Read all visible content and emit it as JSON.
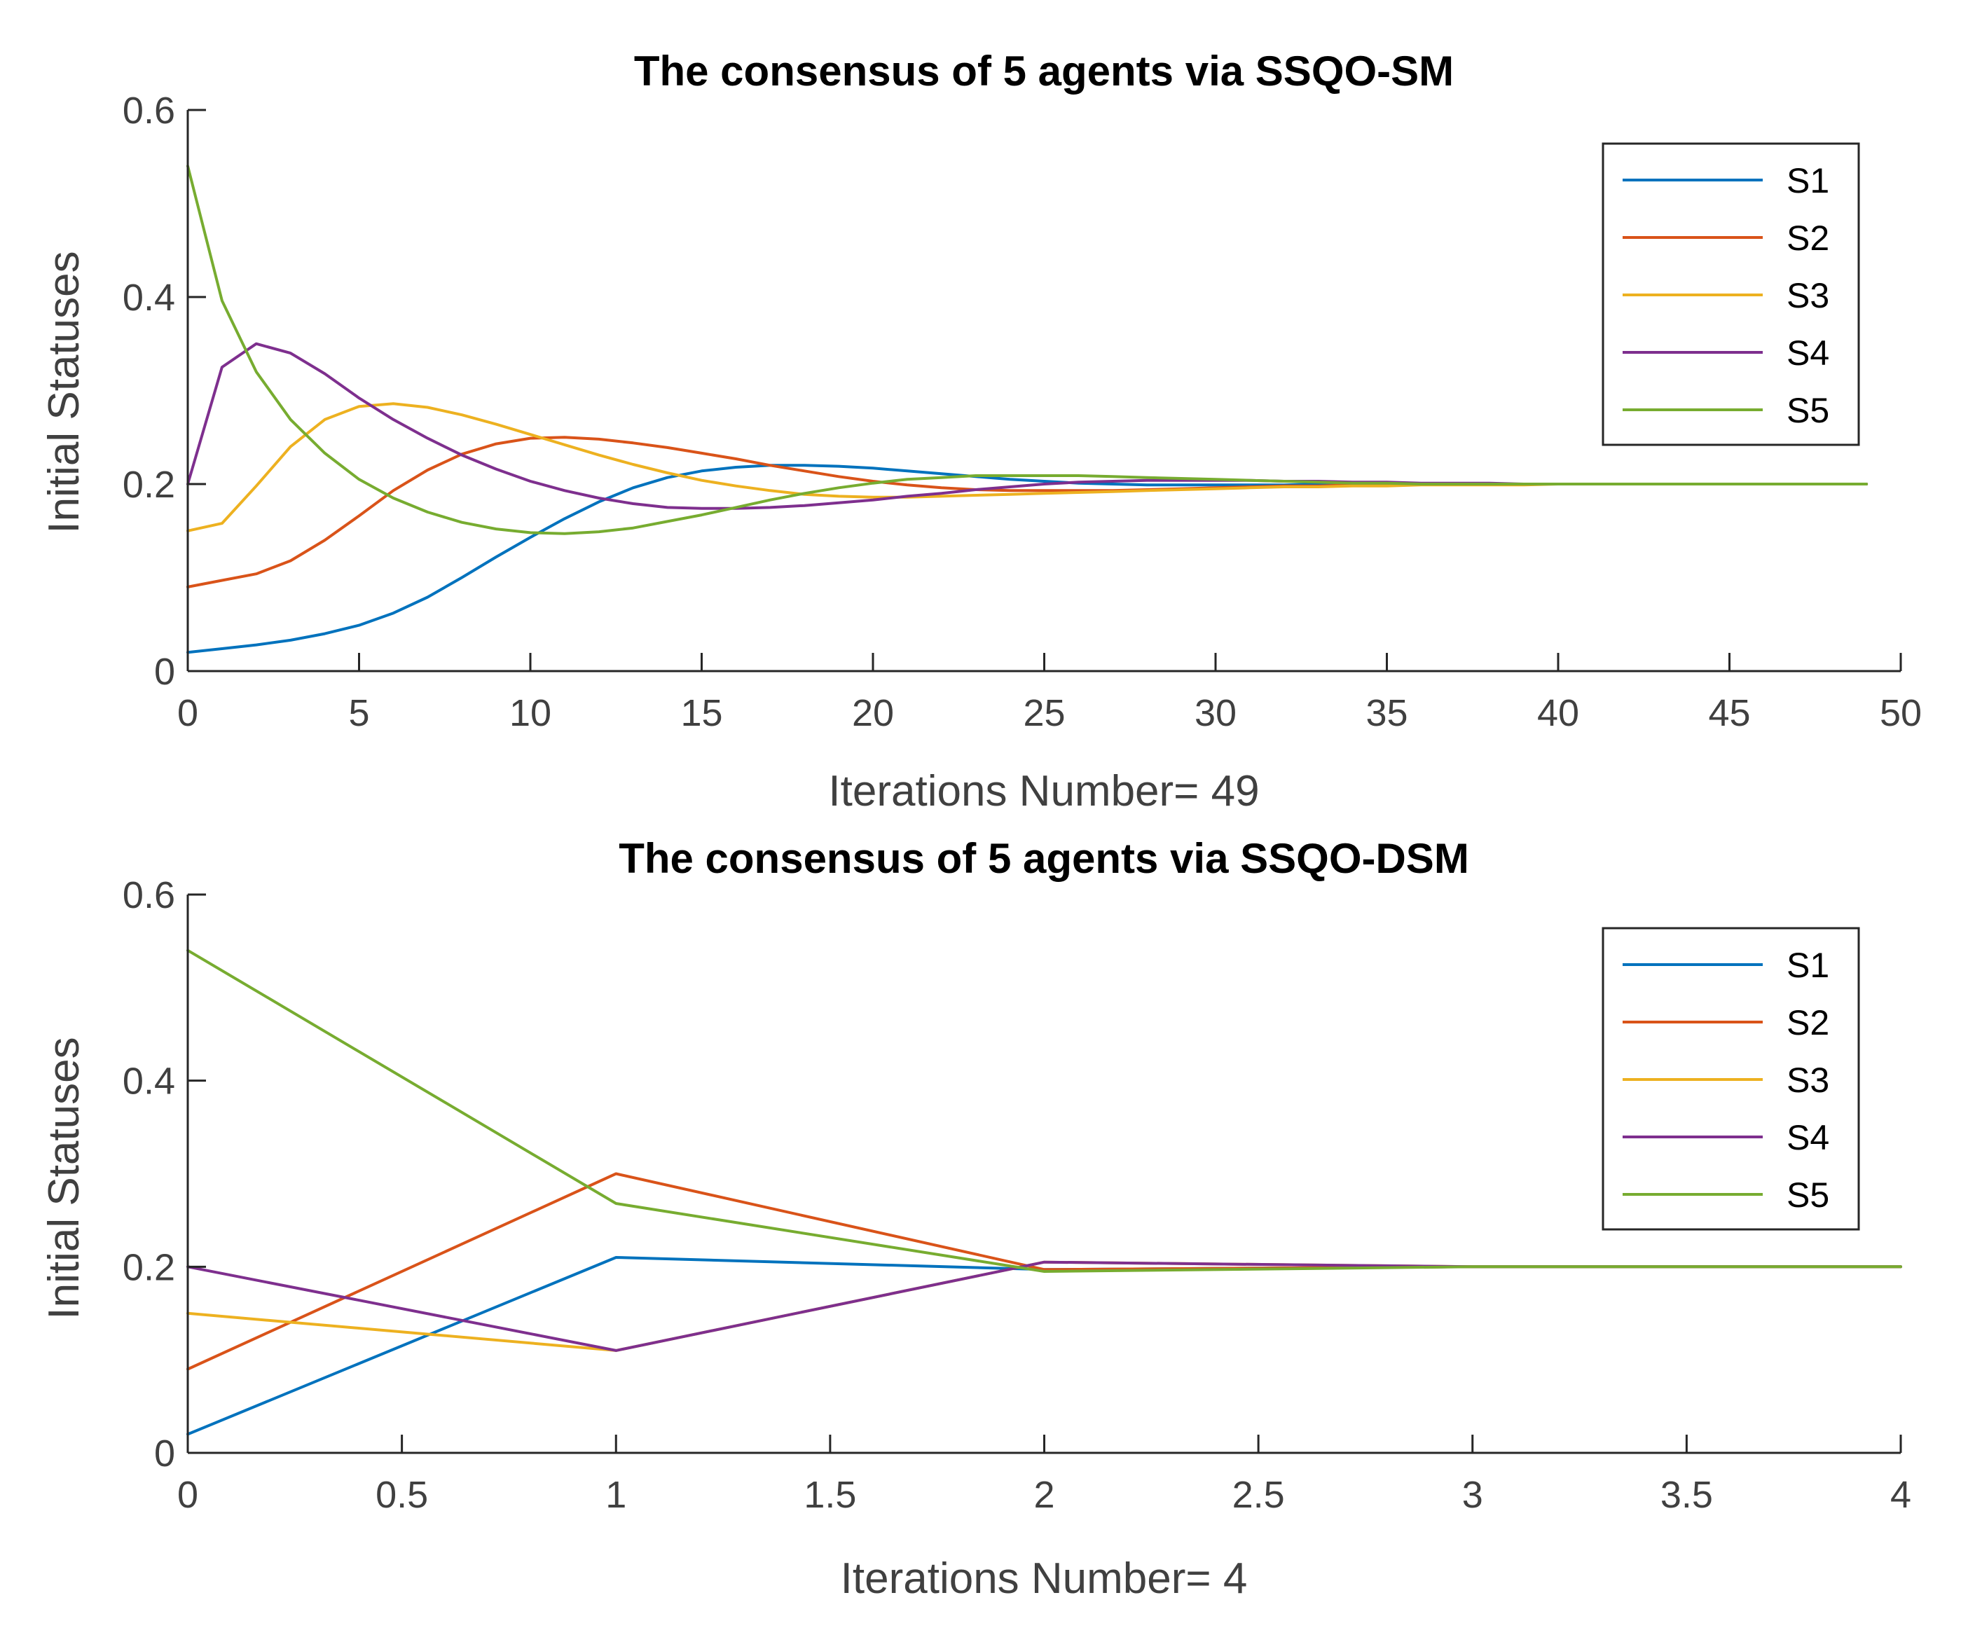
{
  "chart_data": [
    {
      "type": "line",
      "title": "The consensus of 5 agents via SSQO-SM",
      "xlabel": "Iterations Number= 49",
      "ylabel": "Initial Statuses",
      "xlim": [
        0,
        50
      ],
      "ylim": [
        0,
        0.6
      ],
      "xticks": [
        0,
        5,
        10,
        15,
        20,
        25,
        30,
        35,
        40,
        45,
        50
      ],
      "xtick_labels": [
        "0",
        "5",
        "10",
        "15",
        "20",
        "25",
        "30",
        "35",
        "40",
        "45",
        "50"
      ],
      "yticks": [
        0,
        0.2,
        0.4,
        0.6
      ],
      "ytick_labels": [
        "0",
        "0.2",
        "0.4",
        "0.6"
      ],
      "legend": "top-right",
      "grid": false,
      "x": [
        0,
        1,
        2,
        3,
        4,
        5,
        6,
        7,
        8,
        9,
        10,
        11,
        12,
        13,
        14,
        15,
        16,
        17,
        18,
        19,
        20,
        21,
        22,
        23,
        24,
        25,
        26,
        27,
        28,
        29,
        30,
        31,
        32,
        33,
        34,
        35,
        36,
        37,
        38,
        39,
        40,
        41,
        42,
        43,
        44,
        45,
        46,
        47,
        48,
        49
      ],
      "series": [
        {
          "name": "S1",
          "color": "#0072BD",
          "values": [
            0.02,
            0.024,
            0.028,
            0.033,
            0.04,
            0.049,
            0.062,
            0.079,
            0.1,
            0.122,
            0.143,
            0.163,
            0.181,
            0.196,
            0.207,
            0.214,
            0.218,
            0.22,
            0.22,
            0.219,
            0.217,
            0.214,
            0.211,
            0.208,
            0.205,
            0.203,
            0.201,
            0.2,
            0.199,
            0.199,
            0.199,
            0.199,
            0.199,
            0.2,
            0.2,
            0.2,
            0.2,
            0.2,
            0.2,
            0.2,
            0.2,
            0.2,
            0.2,
            0.2,
            0.2,
            0.2,
            0.2,
            0.2,
            0.2,
            0.2
          ]
        },
        {
          "name": "S2",
          "color": "#D95319",
          "values": [
            0.09,
            0.097,
            0.104,
            0.118,
            0.14,
            0.166,
            0.193,
            0.215,
            0.232,
            0.243,
            0.249,
            0.25,
            0.248,
            0.244,
            0.239,
            0.233,
            0.227,
            0.22,
            0.214,
            0.208,
            0.203,
            0.199,
            0.196,
            0.194,
            0.193,
            0.193,
            0.193,
            0.193,
            0.194,
            0.195,
            0.196,
            0.197,
            0.198,
            0.198,
            0.199,
            0.199,
            0.2,
            0.2,
            0.2,
            0.2,
            0.2,
            0.2,
            0.2,
            0.2,
            0.2,
            0.2,
            0.2,
            0.2,
            0.2,
            0.2
          ]
        },
        {
          "name": "S3",
          "color": "#EDB120",
          "values": [
            0.15,
            0.158,
            0.198,
            0.24,
            0.269,
            0.283,
            0.286,
            0.282,
            0.274,
            0.264,
            0.253,
            0.242,
            0.231,
            0.221,
            0.212,
            0.204,
            0.198,
            0.193,
            0.189,
            0.187,
            0.186,
            0.186,
            0.187,
            0.188,
            0.189,
            0.19,
            0.191,
            0.192,
            0.193,
            0.194,
            0.195,
            0.196,
            0.197,
            0.197,
            0.198,
            0.198,
            0.199,
            0.199,
            0.199,
            0.199,
            0.2,
            0.2,
            0.2,
            0.2,
            0.2,
            0.2,
            0.2,
            0.2,
            0.2,
            0.2
          ]
        },
        {
          "name": "S4",
          "color": "#7E2F8E",
          "values": [
            0.2,
            0.325,
            0.35,
            0.34,
            0.318,
            0.292,
            0.269,
            0.249,
            0.231,
            0.216,
            0.203,
            0.193,
            0.185,
            0.179,
            0.175,
            0.174,
            0.174,
            0.175,
            0.177,
            0.18,
            0.183,
            0.187,
            0.19,
            0.194,
            0.197,
            0.2,
            0.202,
            0.203,
            0.204,
            0.204,
            0.204,
            0.204,
            0.203,
            0.203,
            0.202,
            0.202,
            0.201,
            0.201,
            0.201,
            0.2,
            0.2,
            0.2,
            0.2,
            0.2,
            0.2,
            0.2,
            0.2,
            0.2,
            0.2,
            0.2
          ]
        },
        {
          "name": "S5",
          "color": "#77AC30",
          "values": [
            0.54,
            0.396,
            0.32,
            0.269,
            0.233,
            0.205,
            0.185,
            0.17,
            0.159,
            0.152,
            0.148,
            0.147,
            0.149,
            0.153,
            0.16,
            0.167,
            0.175,
            0.183,
            0.19,
            0.196,
            0.201,
            0.205,
            0.207,
            0.209,
            0.209,
            0.209,
            0.209,
            0.208,
            0.207,
            0.206,
            0.205,
            0.204,
            0.203,
            0.202,
            0.201,
            0.201,
            0.2,
            0.2,
            0.2,
            0.2,
            0.2,
            0.2,
            0.2,
            0.2,
            0.2,
            0.2,
            0.2,
            0.2,
            0.2,
            0.2
          ]
        }
      ]
    },
    {
      "type": "line",
      "title": "The consensus of 5 agents via SSQO-DSM",
      "xlabel": "Iterations Number= 4",
      "ylabel": "Initial Statuses",
      "xlim": [
        0,
        4
      ],
      "ylim": [
        0,
        0.6
      ],
      "xticks": [
        0,
        0.5,
        1,
        1.5,
        2,
        2.5,
        3,
        3.5,
        4
      ],
      "xtick_labels": [
        "0",
        "0.5",
        "1",
        "1.5",
        "2",
        "2.5",
        "3",
        "3.5",
        "4"
      ],
      "yticks": [
        0,
        0.2,
        0.4,
        0.6
      ],
      "ytick_labels": [
        "0",
        "0.2",
        "0.4",
        "0.6"
      ],
      "legend": "top-right",
      "grid": false,
      "x": [
        0,
        1,
        2,
        3,
        4
      ],
      "series": [
        {
          "name": "S1",
          "color": "#0072BD",
          "values": [
            0.02,
            0.21,
            0.197,
            0.2,
            0.2
          ]
        },
        {
          "name": "S2",
          "color": "#D95319",
          "values": [
            0.09,
            0.3,
            0.197,
            0.2,
            0.2
          ]
        },
        {
          "name": "S3",
          "color": "#EDB120",
          "values": [
            0.15,
            0.11,
            0.205,
            0.2,
            0.2
          ]
        },
        {
          "name": "S4",
          "color": "#7E2F8E",
          "values": [
            0.2,
            0.11,
            0.205,
            0.2,
            0.2
          ]
        },
        {
          "name": "S5",
          "color": "#77AC30",
          "values": [
            0.54,
            0.268,
            0.195,
            0.2,
            0.2
          ]
        }
      ]
    }
  ]
}
